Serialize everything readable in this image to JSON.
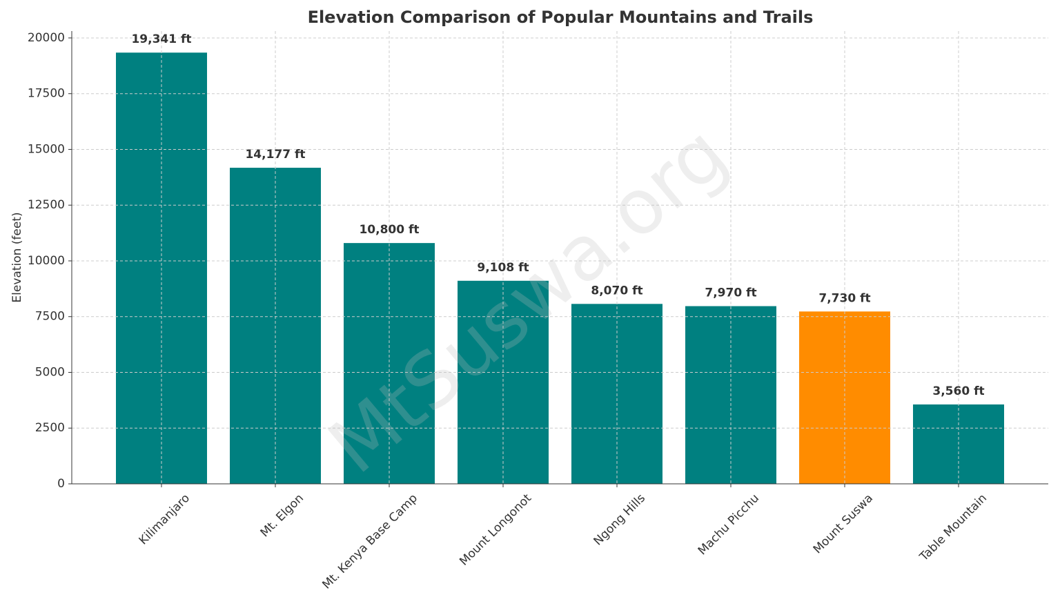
{
  "chart_data": {
    "type": "bar",
    "title": "Elevation Comparison of Popular Mountains and Trails",
    "y_label": "Elevation (feet)",
    "watermark": "MtSuswa.org",
    "categories": [
      "Kilimanjaro",
      "Mt. Elgon",
      "Mt. Kenya Base Camp",
      "Mount Longonot",
      "Ngong Hills",
      "Machu Picchu",
      "Mount Suswa",
      "Table Mountain"
    ],
    "values": [
      19341,
      14177,
      10800,
      9108,
      8070,
      7970,
      7730,
      3560
    ],
    "value_labels": [
      "19,341 ft",
      "14,177 ft",
      "10,800 ft",
      "9,108 ft",
      "8,070 ft",
      "7,970 ft",
      "7,730 ft",
      "3,560 ft"
    ],
    "colors": [
      "#008080",
      "#008080",
      "#008080",
      "#008080",
      "#008080",
      "#008080",
      "#ff8c00",
      "#008080"
    ],
    "ylim": [
      0,
      20308
    ],
    "yticks": [
      0,
      2500,
      5000,
      7500,
      10000,
      12500,
      15000,
      17500,
      20000
    ],
    "grid": true
  }
}
